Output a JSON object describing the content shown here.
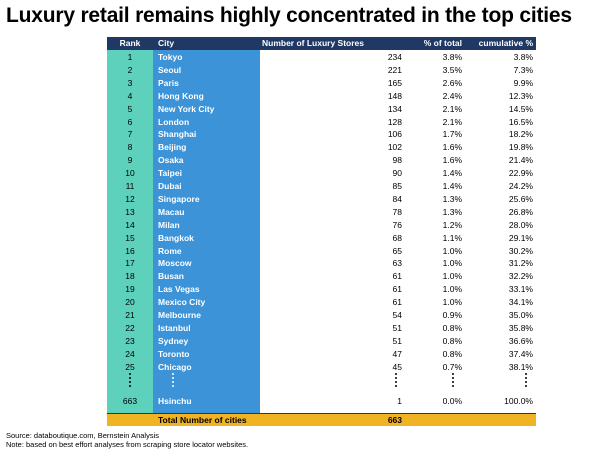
{
  "title": "Luxury retail remains highly concentrated in the top cities",
  "colors": {
    "header_bg": "#1f3864",
    "rank_col": "#5ed1bd",
    "city_col": "#3c93d8",
    "total_bg": "#f0b323"
  },
  "chart_data": {
    "type": "table",
    "columns": [
      "Rank",
      "City",
      "Number of Luxury Stores",
      "% of total",
      "cumulative %"
    ],
    "rows": [
      {
        "rank": "1",
        "city": "Tokyo",
        "stores": "234",
        "pct": "3.8%",
        "cum": "3.8%"
      },
      {
        "rank": "2",
        "city": "Seoul",
        "stores": "221",
        "pct": "3.5%",
        "cum": "7.3%"
      },
      {
        "rank": "3",
        "city": "Paris",
        "stores": "165",
        "pct": "2.6%",
        "cum": "9.9%"
      },
      {
        "rank": "4",
        "city": "Hong Kong",
        "stores": "148",
        "pct": "2.4%",
        "cum": "12.3%"
      },
      {
        "rank": "5",
        "city": "New York City",
        "stores": "134",
        "pct": "2.1%",
        "cum": "14.5%"
      },
      {
        "rank": "6",
        "city": "London",
        "stores": "128",
        "pct": "2.1%",
        "cum": "16.5%"
      },
      {
        "rank": "7",
        "city": "Shanghai",
        "stores": "106",
        "pct": "1.7%",
        "cum": "18.2%"
      },
      {
        "rank": "8",
        "city": "Beijing",
        "stores": "102",
        "pct": "1.6%",
        "cum": "19.8%"
      },
      {
        "rank": "9",
        "city": "Osaka",
        "stores": "98",
        "pct": "1.6%",
        "cum": "21.4%"
      },
      {
        "rank": "10",
        "city": "Taipei",
        "stores": "90",
        "pct": "1.4%",
        "cum": "22.9%"
      },
      {
        "rank": "11",
        "city": "Dubai",
        "stores": "85",
        "pct": "1.4%",
        "cum": "24.2%"
      },
      {
        "rank": "12",
        "city": "Singapore",
        "stores": "84",
        "pct": "1.3%",
        "cum": "25.6%"
      },
      {
        "rank": "13",
        "city": "Macau",
        "stores": "78",
        "pct": "1.3%",
        "cum": "26.8%"
      },
      {
        "rank": "14",
        "city": "Milan",
        "stores": "76",
        "pct": "1.2%",
        "cum": "28.0%"
      },
      {
        "rank": "15",
        "city": "Bangkok",
        "stores": "68",
        "pct": "1.1%",
        "cum": "29.1%"
      },
      {
        "rank": "16",
        "city": "Rome",
        "stores": "65",
        "pct": "1.0%",
        "cum": "30.2%"
      },
      {
        "rank": "17",
        "city": "Moscow",
        "stores": "63",
        "pct": "1.0%",
        "cum": "31.2%"
      },
      {
        "rank": "18",
        "city": "Busan",
        "stores": "61",
        "pct": "1.0%",
        "cum": "32.2%"
      },
      {
        "rank": "19",
        "city": "Las Vegas",
        "stores": "61",
        "pct": "1.0%",
        "cum": "33.1%"
      },
      {
        "rank": "20",
        "city": "Mexico City",
        "stores": "61",
        "pct": "1.0%",
        "cum": "34.1%"
      },
      {
        "rank": "21",
        "city": "Melbourne",
        "stores": "54",
        "pct": "0.9%",
        "cum": "35.0%"
      },
      {
        "rank": "22",
        "city": "Istanbul",
        "stores": "51",
        "pct": "0.8%",
        "cum": "35.8%"
      },
      {
        "rank": "23",
        "city": "Sydney",
        "stores": "51",
        "pct": "0.8%",
        "cum": "36.6%"
      },
      {
        "rank": "24",
        "city": "Toronto",
        "stores": "47",
        "pct": "0.8%",
        "cum": "37.4%"
      },
      {
        "rank": "25",
        "city": "Chicago",
        "stores": "45",
        "pct": "0.7%",
        "cum": "38.1%"
      }
    ],
    "last_row": {
      "rank": "663",
      "city": "Hsinchu",
      "stores": "1",
      "pct": "0.0%",
      "cum": "100.0%"
    },
    "total_row": {
      "label": "Total Number of cities",
      "value": "663"
    }
  },
  "footer": {
    "source": "Source: databoutique.com, Bernstein Analysis",
    "note": "Note: based on best effort analyses from scraping store locator websites."
  }
}
